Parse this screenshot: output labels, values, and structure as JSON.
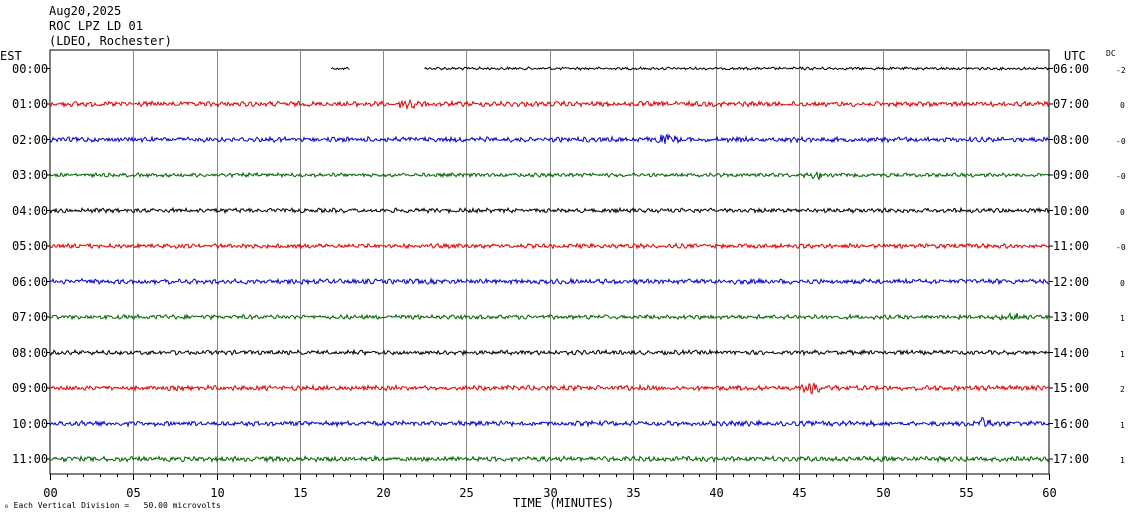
{
  "header": {
    "date": "Aug20,2025",
    "station": "ROC LPZ LD 01",
    "location": "(LDEO, Rochester)"
  },
  "left_tz": "EST",
  "right_tz": "UTC",
  "dc_header": "DC",
  "footnote": "₀ Each Vertical Division =   50.00 microvolts",
  "colors": {
    "cycle": [
      "#000000",
      "#e00000",
      "#0000d0",
      "#006400"
    ],
    "grid": "#888888"
  },
  "chart_data": {
    "type": "line",
    "title": "ROC LPZ LD 01",
    "xlabel": "TIME (MINUTES)",
    "ylabel": "",
    "xlim": [
      0,
      60
    ],
    "x_ticks": [
      "00",
      "05",
      "10",
      "15",
      "20",
      "25",
      "30",
      "35",
      "40",
      "45",
      "50",
      "55",
      "60"
    ],
    "grid": true,
    "rows": [
      {
        "est": "00:00",
        "utc": "06:00",
        "dc": "-2",
        "color": "#000000",
        "segments": [
          [
            16.9,
            18.0
          ],
          [
            22.5,
            60
          ]
        ],
        "amp": 0.5,
        "events": []
      },
      {
        "est": "01:00",
        "utc": "07:00",
        "dc": "0",
        "color": "#e00000",
        "segments": [
          [
            0,
            60
          ]
        ],
        "amp": 0.9,
        "events": [
          [
            21.6,
            1.8
          ]
        ]
      },
      {
        "est": "02:00",
        "utc": "08:00",
        "dc": "-0",
        "color": "#0000d0",
        "segments": [
          [
            0,
            60
          ]
        ],
        "amp": 0.9,
        "events": [
          [
            37.0,
            1.4
          ]
        ]
      },
      {
        "est": "03:00",
        "utc": "09:00",
        "dc": "-0",
        "color": "#006400",
        "segments": [
          [
            0,
            60
          ]
        ],
        "amp": 0.7,
        "events": [
          [
            46.0,
            1.5
          ]
        ]
      },
      {
        "est": "04:00",
        "utc": "10:00",
        "dc": "0",
        "color": "#000000",
        "segments": [
          [
            0,
            60
          ]
        ],
        "amp": 0.8,
        "events": []
      },
      {
        "est": "05:00",
        "utc": "11:00",
        "dc": "-0",
        "color": "#e00000",
        "segments": [
          [
            0,
            60
          ]
        ],
        "amp": 0.8,
        "events": []
      },
      {
        "est": "06:00",
        "utc": "12:00",
        "dc": "0",
        "color": "#0000d0",
        "segments": [
          [
            0,
            60
          ]
        ],
        "amp": 0.9,
        "events": []
      },
      {
        "est": "07:00",
        "utc": "13:00",
        "dc": "1",
        "color": "#006400",
        "segments": [
          [
            0,
            60
          ]
        ],
        "amp": 0.8,
        "events": [
          [
            57.8,
            1.5
          ]
        ]
      },
      {
        "est": "08:00",
        "utc": "14:00",
        "dc": "1",
        "color": "#000000",
        "segments": [
          [
            0,
            60
          ]
        ],
        "amp": 0.8,
        "events": []
      },
      {
        "est": "09:00",
        "utc": "15:00",
        "dc": "2",
        "color": "#e00000",
        "segments": [
          [
            0,
            60
          ]
        ],
        "amp": 0.9,
        "events": [
          [
            45.8,
            1.3
          ]
        ]
      },
      {
        "est": "10:00",
        "utc": "16:00",
        "dc": "1",
        "color": "#0000d0",
        "segments": [
          [
            0,
            60
          ]
        ],
        "amp": 0.9,
        "events": [
          [
            56.0,
            1.4
          ]
        ]
      },
      {
        "est": "11:00",
        "utc": "17:00",
        "dc": "1",
        "color": "#006400",
        "segments": [
          [
            0,
            60
          ]
        ],
        "amp": 0.9,
        "events": []
      }
    ]
  }
}
